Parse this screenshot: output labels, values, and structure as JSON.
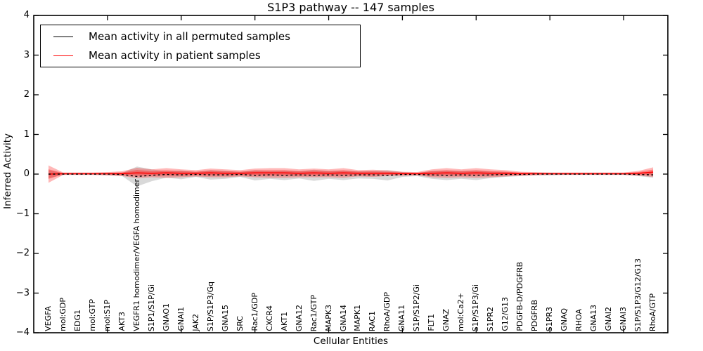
{
  "title": "S1P3 pathway -- 147 samples",
  "axes": {
    "x_label": "Cellular Entities",
    "y_label": "Inferred Activity",
    "y_tick_labels": [
      "4",
      "3",
      "2",
      "1",
      "0",
      "−1",
      "−2",
      "−3",
      "−4"
    ]
  },
  "legend": {
    "items": [
      {
        "label": "Mean activity in all permuted samples",
        "color": "#000000"
      },
      {
        "label": "Mean activity in patient samples",
        "color": "#ff0000"
      }
    ]
  },
  "chart_data": {
    "type": "line",
    "title": "S1P3 pathway -- 147 samples",
    "xlabel": "Cellular Entities",
    "ylabel": "Inferred Activity",
    "ylim": [
      -4,
      4
    ],
    "y_ticks": [
      -4,
      -3,
      -2,
      -1,
      0,
      1,
      2,
      3,
      4
    ],
    "x_major_tick_positions": [
      5,
      10,
      15,
      20,
      25,
      30,
      35,
      40
    ],
    "legend_position": "upper left",
    "grid": false,
    "categories": [
      "VEGFA",
      "mol:GDP",
      "EDG1",
      "mol:GTP",
      "mol:S1P",
      "AKT3",
      "VEGFR1 homodimer/VEGFA homodimer",
      "S1P1/S1P/Gi",
      "GNAO1",
      "GNAI1",
      "JAK2",
      "S1P/S1P3/Gq",
      "GNA15",
      "SRC",
      "Rac1/GDP",
      "CXCR4",
      "AKT1",
      "GNA12",
      "Rac1/GTP",
      "MAPK3",
      "GNA14",
      "MAPK1",
      "RAC1",
      "RhoA/GDP",
      "GNA11",
      "S1P/S1P2/Gi",
      "FLT1",
      "GNAZ",
      "mol:Ca2+",
      "S1P/S1P3/Gi",
      "S1PR2",
      "G12/G13",
      "PDGFB-D/PDGFRB",
      "PDGFRB",
      "S1PR3",
      "GNAQ",
      "RHOA",
      "GNA13",
      "GNAI2",
      "GNAI3",
      "S1P/S1P3/G12/G13",
      "RhoA/GTP"
    ],
    "series": [
      {
        "name": "Mean activity in all permuted samples",
        "color": "#000000",
        "style": "dashed",
        "values": [
          0,
          0,
          0,
          0,
          0,
          -0.01,
          -0.06,
          -0.03,
          -0.01,
          -0.02,
          -0.01,
          -0.02,
          -0.02,
          -0.01,
          -0.03,
          -0.02,
          -0.03,
          -0.02,
          -0.03,
          -0.02,
          -0.03,
          -0.02,
          -0.02,
          -0.03,
          -0.01,
          -0.01,
          -0.02,
          -0.03,
          -0.02,
          -0.03,
          -0.02,
          -0.01,
          -0.01,
          0,
          0,
          0,
          0,
          0,
          0,
          0,
          -0.01,
          -0.02
        ],
        "band_halfwidth": [
          0.1,
          0.02,
          0.02,
          0.02,
          0.03,
          0.04,
          0.25,
          0.15,
          0.08,
          0.11,
          0.06,
          0.12,
          0.1,
          0.06,
          0.13,
          0.1,
          0.12,
          0.09,
          0.14,
          0.1,
          0.12,
          0.09,
          0.1,
          0.13,
          0.06,
          0.04,
          0.1,
          0.12,
          0.1,
          0.12,
          0.08,
          0.06,
          0.04,
          0.03,
          0.03,
          0.02,
          0.02,
          0.02,
          0.02,
          0.02,
          0.04,
          0.07
        ],
        "band_color": "#808080"
      },
      {
        "name": "Mean activity in patient samples",
        "color": "#ff0000",
        "style": "solid",
        "values": [
          0.0,
          0.01,
          0.01,
          0.01,
          0.01,
          0.01,
          0.03,
          0.02,
          0.03,
          0.02,
          0.02,
          0.03,
          0.02,
          0.02,
          0.03,
          0.03,
          0.03,
          0.02,
          0.03,
          0.02,
          0.03,
          0.02,
          0.02,
          0.02,
          0.01,
          0.01,
          0.02,
          0.03,
          0.02,
          0.03,
          0.02,
          0.02,
          0.01,
          0.01,
          0.01,
          0.01,
          0.01,
          0.01,
          0.01,
          0.01,
          0.02,
          0.05
        ],
        "band_halfwidth": [
          0.22,
          0.03,
          0.03,
          0.03,
          0.04,
          0.06,
          0.13,
          0.1,
          0.12,
          0.1,
          0.08,
          0.11,
          0.1,
          0.08,
          0.11,
          0.12,
          0.12,
          0.1,
          0.11,
          0.1,
          0.12,
          0.08,
          0.09,
          0.07,
          0.05,
          0.04,
          0.1,
          0.12,
          0.1,
          0.12,
          0.1,
          0.08,
          0.05,
          0.04,
          0.03,
          0.03,
          0.03,
          0.03,
          0.03,
          0.03,
          0.06,
          0.12
        ],
        "band_color": "#ff0000"
      }
    ]
  }
}
